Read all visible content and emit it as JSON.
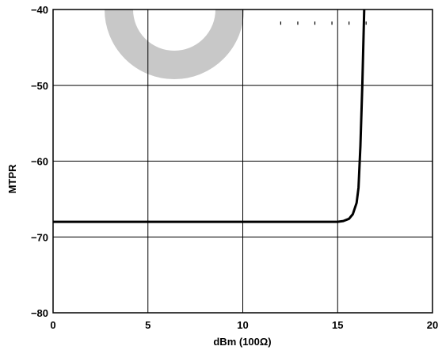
{
  "chart_data": {
    "type": "line",
    "title": "",
    "xlabel": "dBm (100Ω)",
    "ylabel": "MTPR",
    "xlim": [
      0,
      20
    ],
    "ylim": [
      -80,
      -40
    ],
    "x_ticks": [
      "0",
      "5",
      "10",
      "15",
      "20"
    ],
    "y_ticks": [
      "−40",
      "−50",
      "−60",
      "−70",
      "−80"
    ],
    "grid": true,
    "series": [
      {
        "x": [
          0,
          5,
          10,
          14,
          15,
          15.3,
          15.6,
          15.8,
          16.0,
          16.1,
          16.2,
          16.3,
          16.4
        ],
        "y": [
          -68,
          -68,
          -68,
          -68,
          -68,
          -67.9,
          -67.6,
          -67.0,
          -65.5,
          -63.5,
          -58,
          -50,
          -40
        ]
      }
    ],
    "annotations": [
      {
        "type": "dotted-marker-row",
        "x": [
          12.0,
          12.9,
          13.8,
          14.7,
          15.6,
          16.5
        ],
        "y": -41.8
      }
    ],
    "colors": {
      "line": "#000000",
      "grid": "#000000",
      "watermark": "#c8c8c8"
    }
  }
}
